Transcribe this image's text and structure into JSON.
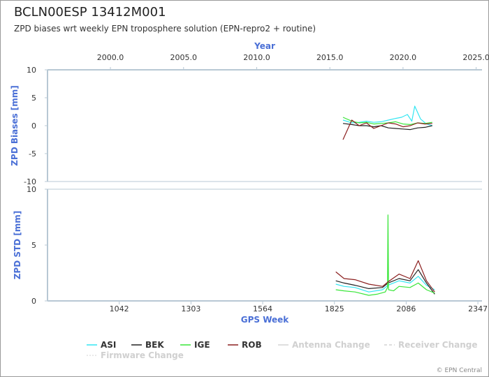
{
  "header": {
    "title": "BCLN00ESP 13412M001",
    "subtitle": "ZPD biases wrt weekly EPN troposphere solution (EPN-repro2 + routine)"
  },
  "footer": {
    "credit": "© EPN Central"
  },
  "colors": {
    "ASI": "#33e6f2",
    "BEK": "#222222",
    "IGE": "#39e639",
    "ROB": "#8b1f1f",
    "axis": "#b8c8d4",
    "label": "#4a6fd6",
    "change": "#d4d4d4"
  },
  "chart_data": [
    {
      "type": "line",
      "panel": "top",
      "title": "",
      "ylabel": "ZPD Biases [mm]",
      "ylim": [
        -10,
        10
      ],
      "yticks": [
        10,
        5,
        0,
        -5,
        -10
      ],
      "xlabel_top": "Year",
      "xticks_top": [
        "2000.0",
        "2005.0",
        "2010.0",
        "2015.0",
        "2020.0",
        "2025.0"
      ],
      "xlim_year": [
        1995.7,
        2025.4
      ],
      "series": [
        {
          "name": "ASI",
          "x": [
            2015.9,
            2016.5,
            2017.0,
            2017.5,
            2018.0,
            2018.5,
            2019.0,
            2019.5,
            2019.9,
            2020.3,
            2020.6,
            2020.8,
            2021.2,
            2021.6,
            2022.0
          ],
          "y": [
            1.0,
            0.5,
            0.6,
            0.8,
            0.6,
            0.7,
            1.0,
            1.3,
            1.5,
            2.0,
            0.8,
            3.5,
            1.2,
            0.3,
            0.0
          ]
        },
        {
          "name": "BEK",
          "x": [
            2015.9,
            2016.5,
            2017.0,
            2017.5,
            2018.0,
            2018.5,
            2019.0,
            2019.5,
            2020.0,
            2020.5,
            2021.0,
            2021.5,
            2022.0
          ],
          "y": [
            0.4,
            0.2,
            0.0,
            0.0,
            -0.2,
            0.0,
            -0.4,
            -0.5,
            -0.6,
            -0.7,
            -0.4,
            -0.3,
            0.0
          ]
        },
        {
          "name": "IGE",
          "x": [
            2015.9,
            2016.5,
            2017.0,
            2017.5,
            2018.0,
            2018.5,
            2019.0,
            2019.5,
            2020.0,
            2020.5,
            2021.0,
            2021.5,
            2022.0
          ],
          "y": [
            1.5,
            0.8,
            0.5,
            0.6,
            0.3,
            0.4,
            0.5,
            0.7,
            0.3,
            0.2,
            0.5,
            0.4,
            0.6
          ]
        },
        {
          "name": "ROB",
          "x": [
            2015.9,
            2016.5,
            2017.0,
            2017.5,
            2018.0,
            2018.5,
            2019.0,
            2019.5,
            2020.0,
            2020.5,
            2021.0,
            2021.5,
            2022.0
          ],
          "y": [
            -2.5,
            1.0,
            0.0,
            0.5,
            -0.5,
            0.0,
            0.5,
            0.3,
            -0.2,
            0.0,
            0.5,
            0.3,
            0.4
          ]
        }
      ]
    },
    {
      "type": "line",
      "panel": "bottom",
      "title": "",
      "ylabel": "ZPD STD [mm]",
      "xlabel": "GPS Week",
      "ylim": [
        0,
        10
      ],
      "yticks": [
        10,
        5,
        0
      ],
      "xticks": [
        "1042",
        "1303",
        "1564",
        "1825",
        "2086",
        "2347"
      ],
      "xlim_week": [
        781,
        2362
      ],
      "series": [
        {
          "name": "ASI",
          "x": [
            1830,
            1860,
            1900,
            1950,
            2000,
            2020,
            2060,
            2100,
            2130,
            2160,
            2190
          ],
          "y": [
            1.5,
            1.3,
            1.2,
            0.8,
            1.0,
            1.4,
            1.8,
            1.6,
            2.2,
            1.4,
            1.0
          ]
        },
        {
          "name": "BEK",
          "x": [
            1830,
            1860,
            1900,
            1950,
            2000,
            2020,
            2060,
            2100,
            2130,
            2160,
            2190
          ],
          "y": [
            1.8,
            1.6,
            1.4,
            1.1,
            1.2,
            1.6,
            2.0,
            1.8,
            2.8,
            1.6,
            0.6
          ]
        },
        {
          "name": "IGE",
          "x": [
            1830,
            1860,
            1900,
            1950,
            1980,
            2010,
            2018,
            2020,
            2022,
            2040,
            2060,
            2100,
            2130,
            2160,
            2190
          ],
          "y": [
            1.0,
            0.9,
            0.8,
            0.5,
            0.6,
            0.8,
            1.2,
            7.7,
            1.0,
            0.9,
            1.3,
            1.2,
            1.6,
            1.0,
            0.7
          ]
        },
        {
          "name": "ROB",
          "x": [
            1830,
            1860,
            1900,
            1950,
            2000,
            2020,
            2060,
            2100,
            2130,
            2160,
            2190
          ],
          "y": [
            2.6,
            2.0,
            1.9,
            1.5,
            1.3,
            1.7,
            2.4,
            2.0,
            3.6,
            1.8,
            0.8
          ]
        }
      ]
    }
  ],
  "legend": {
    "items": [
      {
        "name": "ASI",
        "color": "#33e6f2",
        "style": "solid"
      },
      {
        "name": "BEK",
        "color": "#222222",
        "style": "solid"
      },
      {
        "name": "IGE",
        "color": "#39e639",
        "style": "solid"
      },
      {
        "name": "ROB",
        "color": "#8b1f1f",
        "style": "solid"
      },
      {
        "name": "Antenna Change",
        "color": "#d4d4d4",
        "style": "solid",
        "muted": true
      },
      {
        "name": "Receiver Change",
        "color": "#d4d4d4",
        "style": "dashed",
        "muted": true
      },
      {
        "name": "Firmware Change",
        "color": "#e2e2e2",
        "style": "dotted",
        "muted": true
      }
    ]
  }
}
